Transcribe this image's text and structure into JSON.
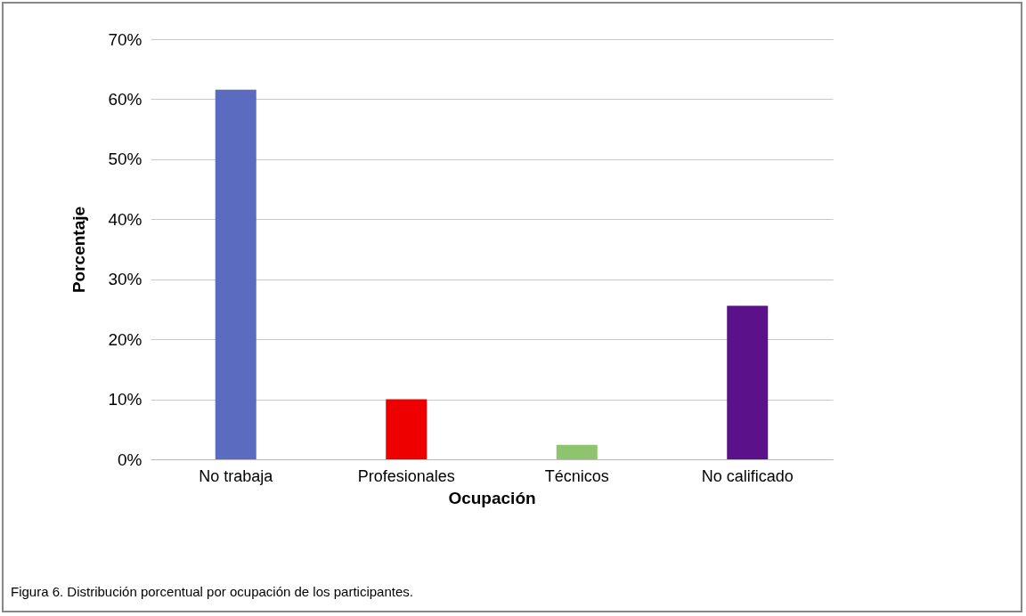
{
  "chart_data": {
    "type": "bar",
    "xlabel": "Ocupación",
    "ylabel": "Porcentaje",
    "categories": [
      "No trabaja",
      "Profesionales",
      "Técnicos",
      "No calificado"
    ],
    "values": [
      61.6,
      10,
      2.4,
      25.6
    ],
    "colors": [
      "#5b6bbf",
      "#ee0000",
      "#8fc46e",
      "#5a1189"
    ],
    "ylim": [
      0,
      70
    ],
    "yticks": [
      {
        "value": 0,
        "label": "0%"
      },
      {
        "value": 10,
        "label": "10%"
      },
      {
        "value": 20,
        "label": "20%"
      },
      {
        "value": 30,
        "label": "30%"
      },
      {
        "value": 40,
        "label": "40%"
      },
      {
        "value": 50,
        "label": "50%"
      },
      {
        "value": 60,
        "label": "60%"
      },
      {
        "value": 70,
        "label": "70%"
      }
    ],
    "grid": "y",
    "annotations": [
      "Figura 6. Distribución porcentual por ocupación de los participantes."
    ]
  }
}
